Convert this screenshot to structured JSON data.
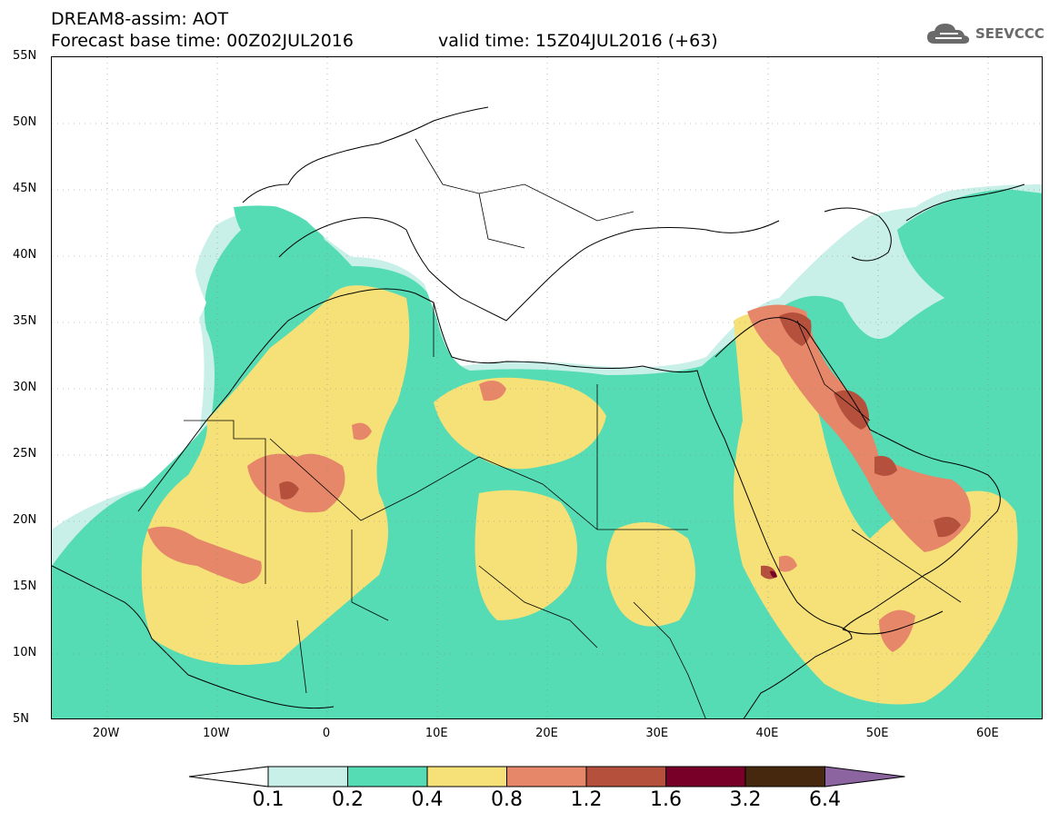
{
  "header": {
    "title": "DREAM8-assim: AOT",
    "base_time": "Forecast base time: 00Z02JUL2016",
    "valid_time": "valid time: 15Z04JUL2016 (+63)"
  },
  "logo": {
    "text": "SEEVCCC",
    "icon": "cloud-icon"
  },
  "map": {
    "lat_labels": [
      "55N",
      "50N",
      "45N",
      "40N",
      "35N",
      "30N",
      "25N",
      "20N",
      "15N",
      "10N",
      "5N"
    ],
    "lon_labels": [
      "20W",
      "10W",
      "0",
      "10E",
      "20E",
      "30E",
      "40E",
      "50E",
      "60E"
    ],
    "lon_range": [
      -25,
      65
    ],
    "lat_range": [
      5,
      55
    ]
  },
  "colorbar": {
    "labels": [
      "0.1",
      "0.2",
      "0.4",
      "0.8",
      "1.2",
      "1.6",
      "3.2",
      "6.4"
    ],
    "colors": [
      "#c8f0e8",
      "#55dcb4",
      "#f5e178",
      "#e6876a",
      "#b4503c",
      "#780028",
      "#46280f",
      "#8c64a0"
    ],
    "under_color": "#ffffff"
  }
}
